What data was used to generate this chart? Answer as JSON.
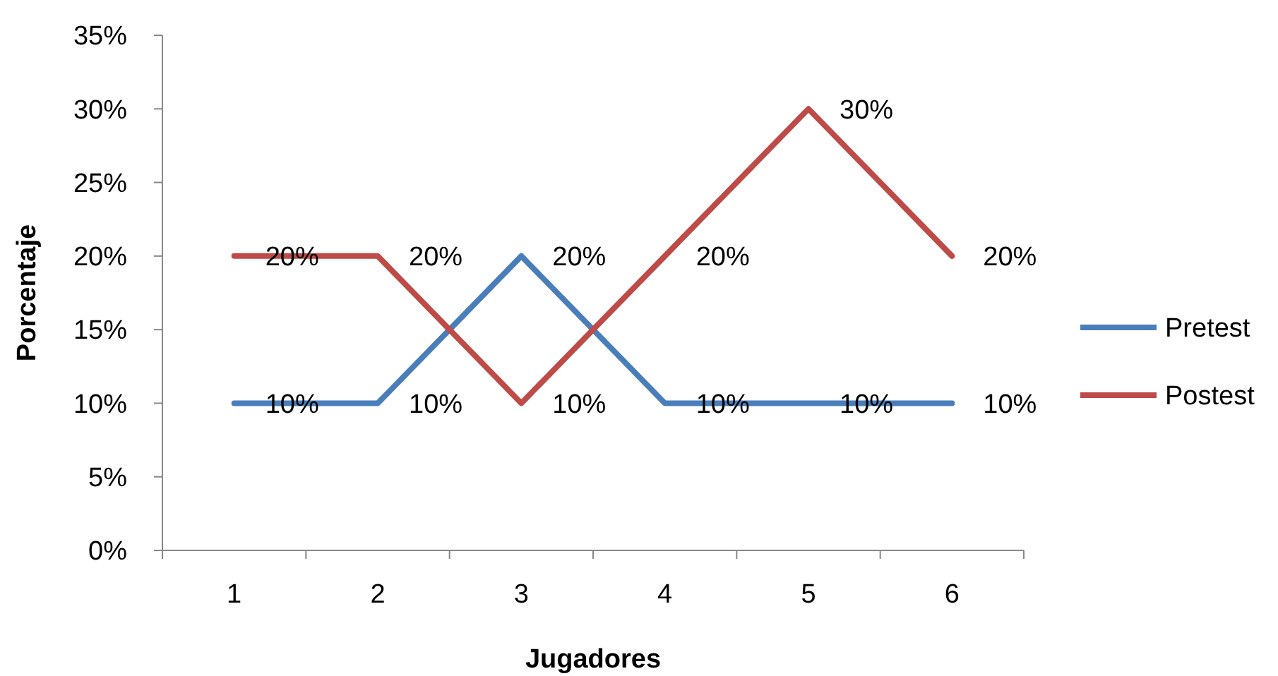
{
  "chart_data": {
    "type": "line",
    "xlabel": "Jugadores",
    "ylabel": "Porcentaje",
    "categories": [
      "1",
      "2",
      "3",
      "4",
      "5",
      "6"
    ],
    "ylim": [
      0,
      35
    ],
    "yticks": [
      {
        "value": 0,
        "label": "0%"
      },
      {
        "value": 5,
        "label": "5%"
      },
      {
        "value": 10,
        "label": "10%"
      },
      {
        "value": 15,
        "label": "15%"
      },
      {
        "value": 20,
        "label": "20%"
      },
      {
        "value": 25,
        "label": "25%"
      },
      {
        "value": 30,
        "label": "30%"
      },
      {
        "value": 35,
        "label": "35%"
      }
    ],
    "grid": false,
    "legend": "right",
    "marker": "none",
    "line_style": "solid",
    "series": [
      {
        "name": "Pretest",
        "color": "#4a7ebb",
        "values": [
          10,
          10,
          20,
          10,
          10,
          10
        ],
        "value_labels": [
          "10%",
          "10%",
          "20%",
          "10%",
          "10%",
          "10%"
        ]
      },
      {
        "name": "Postest",
        "color": "#be4b48",
        "values": [
          20,
          20,
          10,
          20,
          30,
          20
        ],
        "value_labels": [
          "20%",
          "20%",
          "10%",
          "20%",
          "30%",
          "20%"
        ]
      }
    ]
  }
}
